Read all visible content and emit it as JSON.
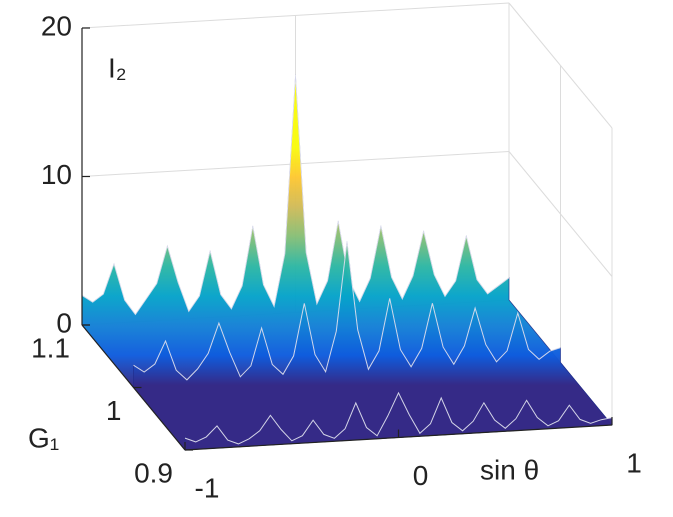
{
  "chart_data": {
    "type": "surface3d",
    "xlabel": "sin θ",
    "ylabel": "G₁",
    "zlabel": "I₂",
    "x": [
      -1,
      -0.95,
      -0.9,
      -0.85,
      -0.8,
      -0.75,
      -0.7,
      -0.65,
      -0.6,
      -0.55,
      -0.5,
      -0.45,
      -0.4,
      -0.35,
      -0.3,
      -0.25,
      -0.2,
      -0.15,
      -0.1,
      -0.05,
      0,
      0.05,
      0.1,
      0.15,
      0.2,
      0.25,
      0.3,
      0.35,
      0.4,
      0.45,
      0.5,
      0.55,
      0.6,
      0.65,
      0.7,
      0.75,
      0.8,
      0.85,
      0.9,
      0.95,
      1
    ],
    "series": [
      {
        "name": "1.1",
        "g": 1.1,
        "values": [
          2,
          1.5,
          2,
          4,
          1.5,
          0.5,
          1.5,
          2.5,
          5,
          2.5,
          0.5,
          1.5,
          4.5,
          1.5,
          0.5,
          2,
          6,
          2,
          0.5,
          4,
          16,
          4,
          0.5,
          2,
          6,
          2,
          0.5,
          2,
          5.5,
          2,
          0.5,
          2,
          5,
          2,
          0.5,
          1.5,
          4.5,
          1.5,
          0.5,
          1,
          1.5
        ]
      },
      {
        "name": "1",
        "g": 1,
        "values": [
          1.5,
          1,
          1.5,
          3,
          1,
          0.3,
          1,
          2,
          4,
          2,
          0.3,
          1,
          3.5,
          1,
          0.3,
          1.5,
          5,
          1.5,
          0.3,
          3,
          9,
          3,
          0.3,
          1.5,
          5,
          1.5,
          0.3,
          1.5,
          4.5,
          1.5,
          0.3,
          1.5,
          4,
          1.5,
          0.3,
          1,
          3.5,
          1,
          0.3,
          0.8,
          1
        ]
      },
      {
        "name": "0.9",
        "g": 0.9,
        "values": [
          0.8,
          0.5,
          0.8,
          1.5,
          0.5,
          0.2,
          0.5,
          1,
          2,
          1,
          0.2,
          0.5,
          1.5,
          0.5,
          0.2,
          0.8,
          2.5,
          0.8,
          0.2,
          1.5,
          3,
          1.5,
          0.2,
          0.8,
          2.5,
          0.8,
          0.2,
          0.8,
          2,
          0.8,
          0.2,
          0.8,
          2,
          0.8,
          0.2,
          0.5,
          1.5,
          0.5,
          0.2,
          0.4,
          0.5
        ]
      }
    ],
    "colormap": [
      "#352a87",
      "#0f5cdd",
      "#1481d6",
      "#06a4ca",
      "#2eb7a4",
      "#87bf77",
      "#d1bb59",
      "#fec832",
      "#f9fb0e"
    ],
    "xlim": [
      -1,
      1
    ],
    "xticks": [
      -1,
      0,
      1
    ],
    "ylim": [
      0.9,
      1.1
    ],
    "yticks": [
      0.9,
      1,
      1.1
    ],
    "zlim": [
      0,
      20
    ],
    "zticks": [
      0,
      10,
      20
    ],
    "grid": true
  }
}
